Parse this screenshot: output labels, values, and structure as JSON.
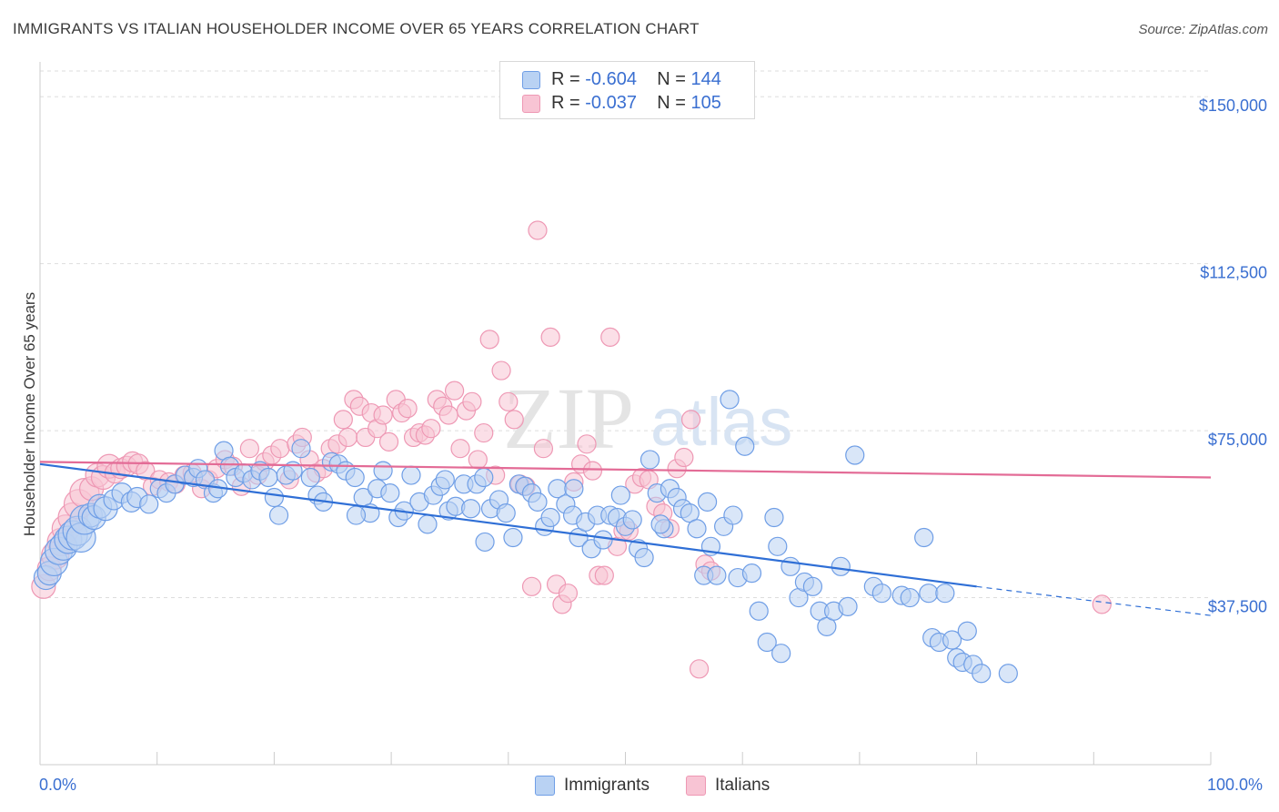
{
  "title": "IMMIGRANTS VS ITALIAN HOUSEHOLDER INCOME OVER 65 YEARS CORRELATION CHART",
  "source": "Source: ZipAtlas.com",
  "watermark": {
    "zip": "ZIP",
    "atlas": "atlas"
  },
  "legend_top": {
    "immigrants": {
      "r_label": "R = ",
      "r_value": "-0.604",
      "n_label": "N = ",
      "n_value": "144"
    },
    "italians": {
      "r_label": "R = ",
      "r_value": "-0.037",
      "n_label": "N = ",
      "n_value": "105"
    }
  },
  "legend_bottom": {
    "immigrants": "Immigrants",
    "italians": "Italians"
  },
  "colors": {
    "immigrants_fill": "#b9d2f3",
    "immigrants_stroke": "#6f9ee6",
    "immigrants_line": "#2f6fd6",
    "italians_fill": "#f8c4d4",
    "italians_stroke": "#ee98b4",
    "italians_line": "#e36b96",
    "axis_label": "#3a6fd1",
    "grid": "#dddddd"
  },
  "chart_data": {
    "type": "scatter",
    "title": "IMMIGRANTS VS ITALIAN HOUSEHOLDER INCOME OVER 65 YEARS CORRELATION CHART",
    "xlabel": "",
    "ylabel": "Householder Income Over 65 years",
    "xlim": [
      0,
      100
    ],
    "ylim": [
      0,
      157000
    ],
    "x_tick_labels": [
      "0.0%",
      "100.0%"
    ],
    "y_ticks": [
      37500,
      75000,
      112500,
      150000
    ],
    "y_tick_labels": [
      "$37,500",
      "$75,000",
      "$112,500",
      "$150,000"
    ],
    "grid": true,
    "legend_position": "top-center",
    "series": [
      {
        "name": "Immigrants",
        "trend": {
          "x": [
            0,
            80
          ],
          "y": [
            67500,
            40000
          ],
          "dashed_extension_to": [
            100,
            33500
          ]
        },
        "points": [
          [
            0.5,
            42000
          ],
          [
            0.8,
            43000
          ],
          [
            1.2,
            45500
          ],
          [
            1.6,
            48000
          ],
          [
            2.0,
            49000
          ],
          [
            2.4,
            50500
          ],
          [
            2.8,
            51500
          ],
          [
            3.2,
            52500
          ],
          [
            3.5,
            51000
          ],
          [
            3.8,
            55000
          ],
          [
            4.3,
            56000
          ],
          [
            4.6,
            55500
          ],
          [
            5.1,
            58000
          ],
          [
            5.6,
            57500
          ],
          [
            6.3,
            59500
          ],
          [
            7.0,
            61000
          ],
          [
            7.8,
            59000
          ],
          [
            8.3,
            60000
          ],
          [
            9.3,
            58500
          ],
          [
            10.2,
            62000
          ],
          [
            10.8,
            61000
          ],
          [
            11.5,
            63000
          ],
          [
            12.4,
            65000
          ],
          [
            13.1,
            64500
          ],
          [
            13.5,
            66500
          ],
          [
            14.1,
            64000
          ],
          [
            14.8,
            61000
          ],
          [
            15.2,
            62000
          ],
          [
            15.7,
            70500
          ],
          [
            16.2,
            67000
          ],
          [
            16.7,
            64500
          ],
          [
            17.4,
            65500
          ],
          [
            18.1,
            64000
          ],
          [
            18.8,
            66000
          ],
          [
            19.5,
            64500
          ],
          [
            20.0,
            60000
          ],
          [
            20.4,
            56000
          ],
          [
            21.0,
            65000
          ],
          [
            21.6,
            66000
          ],
          [
            22.3,
            71000
          ],
          [
            23.1,
            64500
          ],
          [
            23.7,
            60500
          ],
          [
            24.2,
            59000
          ],
          [
            24.9,
            68000
          ],
          [
            25.5,
            67500
          ],
          [
            26.1,
            66000
          ],
          [
            26.9,
            64500
          ],
          [
            27.6,
            60000
          ],
          [
            28.2,
            56500
          ],
          [
            28.8,
            62000
          ],
          [
            29.3,
            66000
          ],
          [
            29.9,
            61000
          ],
          [
            30.6,
            55500
          ],
          [
            31.1,
            57000
          ],
          [
            31.7,
            65000
          ],
          [
            32.4,
            59000
          ],
          [
            33.1,
            54000
          ],
          [
            33.6,
            60500
          ],
          [
            34.2,
            62500
          ],
          [
            34.9,
            57000
          ],
          [
            35.5,
            58000
          ],
          [
            36.2,
            63000
          ],
          [
            36.8,
            57500
          ],
          [
            37.3,
            63000
          ],
          [
            38.0,
            50000
          ],
          [
            38.5,
            57500
          ],
          [
            39.2,
            59500
          ],
          [
            39.8,
            56500
          ],
          [
            40.4,
            51000
          ],
          [
            40.9,
            63000
          ],
          [
            41.4,
            62500
          ],
          [
            42.0,
            61000
          ],
          [
            42.5,
            59000
          ],
          [
            43.1,
            53500
          ],
          [
            43.6,
            55500
          ],
          [
            44.2,
            62000
          ],
          [
            44.9,
            58500
          ],
          [
            45.5,
            56000
          ],
          [
            46.0,
            51000
          ],
          [
            46.6,
            54500
          ],
          [
            47.1,
            48500
          ],
          [
            47.6,
            56000
          ],
          [
            48.1,
            50500
          ],
          [
            48.7,
            56000
          ],
          [
            49.3,
            55500
          ],
          [
            50.0,
            53500
          ],
          [
            50.6,
            55000
          ],
          [
            51.1,
            48500
          ],
          [
            51.6,
            46500
          ],
          [
            52.1,
            68500
          ],
          [
            52.7,
            61000
          ],
          [
            53.3,
            53000
          ],
          [
            53.8,
            62000
          ],
          [
            54.4,
            60000
          ],
          [
            54.9,
            57500
          ],
          [
            55.5,
            56500
          ],
          [
            56.1,
            53000
          ],
          [
            56.7,
            42500
          ],
          [
            57.3,
            49000
          ],
          [
            57.8,
            42500
          ],
          [
            58.4,
            53500
          ],
          [
            58.9,
            82000
          ],
          [
            59.6,
            42000
          ],
          [
            60.2,
            71500
          ],
          [
            60.8,
            43000
          ],
          [
            61.4,
            34500
          ],
          [
            62.1,
            27500
          ],
          [
            62.7,
            55500
          ],
          [
            63.3,
            25000
          ],
          [
            64.1,
            44500
          ],
          [
            64.8,
            37500
          ],
          [
            65.3,
            41000
          ],
          [
            66.0,
            40000
          ],
          [
            66.6,
            34500
          ],
          [
            67.2,
            31000
          ],
          [
            67.8,
            34500
          ],
          [
            68.4,
            44500
          ],
          [
            69.0,
            35500
          ],
          [
            69.6,
            69500
          ],
          [
            71.2,
            40000
          ],
          [
            71.9,
            38500
          ],
          [
            73.6,
            38000
          ],
          [
            74.3,
            37500
          ],
          [
            75.5,
            51000
          ],
          [
            75.9,
            38500
          ],
          [
            76.2,
            28500
          ],
          [
            76.8,
            27500
          ],
          [
            77.3,
            38500
          ],
          [
            77.9,
            28000
          ],
          [
            78.3,
            24000
          ],
          [
            78.8,
            23000
          ],
          [
            79.2,
            30000
          ],
          [
            79.7,
            22500
          ],
          [
            80.4,
            20500
          ],
          [
            82.7,
            20500
          ],
          [
            27.0,
            56000
          ],
          [
            34.6,
            64000
          ],
          [
            37.9,
            64500
          ],
          [
            45.6,
            62000
          ],
          [
            49.6,
            60500
          ],
          [
            53.0,
            54000
          ],
          [
            57.0,
            59000
          ],
          [
            59.2,
            56000
          ],
          [
            63.0,
            49000
          ]
        ]
      },
      {
        "name": "Italians",
        "trend": {
          "x": [
            0,
            100
          ],
          "y": [
            68000,
            64500
          ]
        },
        "points": [
          [
            0.3,
            40000
          ],
          [
            0.8,
            44000
          ],
          [
            1.3,
            47000
          ],
          [
            1.8,
            50000
          ],
          [
            2.2,
            53000
          ],
          [
            2.8,
            55500
          ],
          [
            3.3,
            58500
          ],
          [
            3.8,
            61000
          ],
          [
            4.4,
            62000
          ],
          [
            4.9,
            65000
          ],
          [
            5.4,
            64500
          ],
          [
            5.9,
            67000
          ],
          [
            6.4,
            65500
          ],
          [
            6.9,
            66500
          ],
          [
            7.4,
            67000
          ],
          [
            7.9,
            68000
          ],
          [
            8.4,
            67500
          ],
          [
            9.0,
            66000
          ],
          [
            9.6,
            62500
          ],
          [
            10.2,
            64000
          ],
          [
            11.0,
            63500
          ],
          [
            11.6,
            63000
          ],
          [
            12.3,
            65000
          ],
          [
            13.0,
            65500
          ],
          [
            13.8,
            62000
          ],
          [
            14.4,
            64000
          ],
          [
            15.1,
            66500
          ],
          [
            15.8,
            68500
          ],
          [
            16.5,
            67000
          ],
          [
            17.2,
            62500
          ],
          [
            17.9,
            71000
          ],
          [
            18.6,
            65000
          ],
          [
            19.2,
            68000
          ],
          [
            19.8,
            69500
          ],
          [
            20.5,
            71000
          ],
          [
            21.3,
            64000
          ],
          [
            21.9,
            72000
          ],
          [
            22.4,
            73500
          ],
          [
            23.0,
            68500
          ],
          [
            23.6,
            65500
          ],
          [
            24.2,
            66500
          ],
          [
            24.8,
            71000
          ],
          [
            25.4,
            72000
          ],
          [
            25.9,
            77500
          ],
          [
            26.3,
            73500
          ],
          [
            26.8,
            82000
          ],
          [
            27.3,
            80500
          ],
          [
            27.8,
            73500
          ],
          [
            28.3,
            79000
          ],
          [
            28.8,
            75500
          ],
          [
            29.3,
            78500
          ],
          [
            29.8,
            72500
          ],
          [
            30.4,
            82000
          ],
          [
            30.9,
            79000
          ],
          [
            31.4,
            80000
          ],
          [
            31.9,
            73500
          ],
          [
            32.4,
            74500
          ],
          [
            32.9,
            74000
          ],
          [
            33.4,
            75500
          ],
          [
            33.9,
            82000
          ],
          [
            34.4,
            80500
          ],
          [
            34.9,
            78500
          ],
          [
            35.4,
            84000
          ],
          [
            35.9,
            71000
          ],
          [
            36.4,
            79500
          ],
          [
            36.9,
            81500
          ],
          [
            37.4,
            68500
          ],
          [
            37.9,
            74500
          ],
          [
            38.4,
            95500
          ],
          [
            38.9,
            65000
          ],
          [
            39.4,
            88500
          ],
          [
            40.0,
            81500
          ],
          [
            40.5,
            77500
          ],
          [
            41.0,
            63000
          ],
          [
            41.5,
            62500
          ],
          [
            42.0,
            40000
          ],
          [
            42.5,
            120000
          ],
          [
            43.0,
            71000
          ],
          [
            43.6,
            96000
          ],
          [
            44.1,
            40500
          ],
          [
            44.6,
            36000
          ],
          [
            45.1,
            38500
          ],
          [
            45.6,
            63500
          ],
          [
            46.2,
            67500
          ],
          [
            46.7,
            72000
          ],
          [
            47.2,
            66000
          ],
          [
            47.7,
            42500
          ],
          [
            48.2,
            42500
          ],
          [
            48.7,
            96000
          ],
          [
            49.3,
            49000
          ],
          [
            49.8,
            52500
          ],
          [
            50.3,
            52500
          ],
          [
            50.8,
            63000
          ],
          [
            51.4,
            64500
          ],
          [
            52.0,
            64000
          ],
          [
            52.6,
            58000
          ],
          [
            53.2,
            56500
          ],
          [
            53.8,
            53000
          ],
          [
            54.4,
            66500
          ],
          [
            55.0,
            69000
          ],
          [
            55.6,
            77500
          ],
          [
            56.3,
            21500
          ],
          [
            56.8,
            45000
          ],
          [
            57.3,
            43500
          ],
          [
            90.7,
            36000
          ]
        ]
      }
    ]
  }
}
